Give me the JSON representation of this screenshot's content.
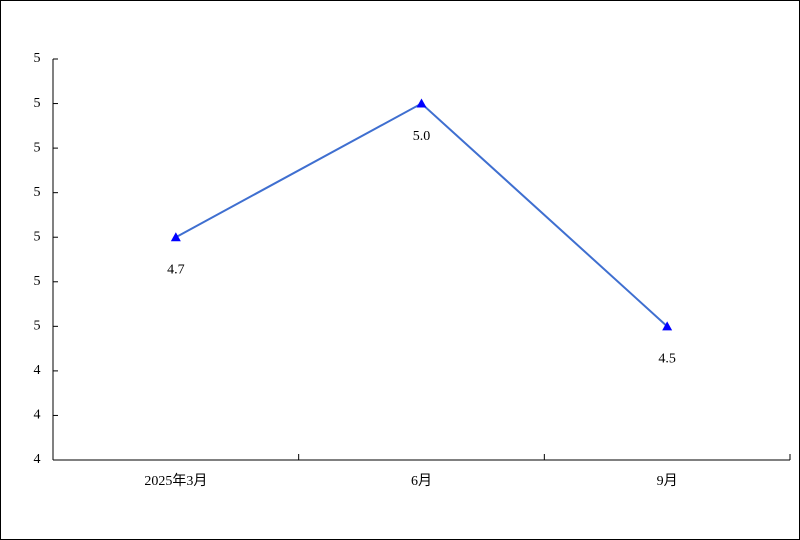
{
  "chart_data": {
    "type": "line",
    "categories": [
      "2025年3月",
      "6月",
      "9月"
    ],
    "series": [
      {
        "values": [
          4.7,
          5.0,
          4.5
        ],
        "value_labels": [
          "4.7",
          "5.0",
          "4.5"
        ],
        "color": "#3f6fd0",
        "marker_color": "#0000ff"
      }
    ],
    "ylim": [
      4.2,
      5.1
    ],
    "yticks": [
      {
        "value": 4.2,
        "label": "4"
      },
      {
        "value": 4.3,
        "label": "4"
      },
      {
        "value": 4.4,
        "label": "4"
      },
      {
        "value": 4.5,
        "label": "5"
      },
      {
        "value": 4.6,
        "label": "5"
      },
      {
        "value": 4.7,
        "label": "5"
      },
      {
        "value": 4.8,
        "label": "5"
      },
      {
        "value": 4.9,
        "label": "5"
      },
      {
        "value": 5.0,
        "label": "5"
      },
      {
        "value": 5.1,
        "label": "5"
      }
    ],
    "grid": false
  }
}
